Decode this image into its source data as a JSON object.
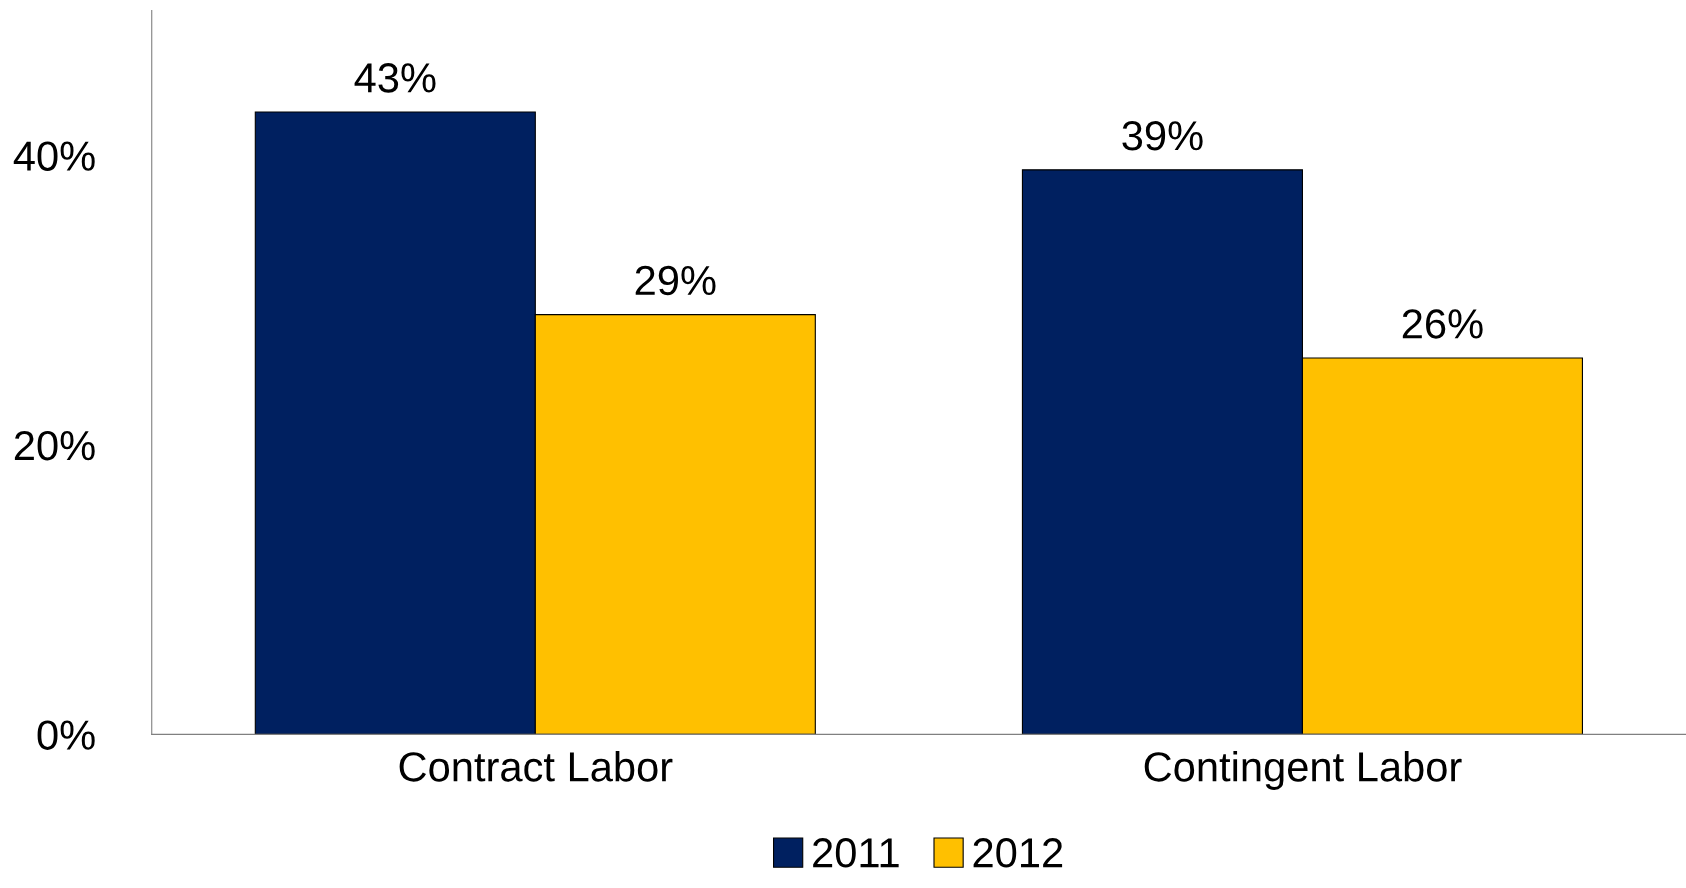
{
  "chart_data": {
    "type": "bar",
    "categories": [
      "Contract Labor",
      "Contingent Labor"
    ],
    "series": [
      {
        "name": "2011",
        "color": "#002060",
        "values": [
          43,
          39
        ]
      },
      {
        "name": "2012",
        "color": "#ffc000",
        "values": [
          29,
          26
        ]
      }
    ],
    "ylim": [
      0,
      50
    ],
    "yticks": [
      {
        "value": 0,
        "label": "0%"
      },
      {
        "value": 20,
        "label": "20%"
      },
      {
        "value": 40,
        "label": "40%"
      }
    ],
    "value_labels": [
      [
        "43%",
        "39%"
      ],
      [
        "29%",
        "26%"
      ]
    ],
    "grid": false,
    "legend": "bottom"
  }
}
